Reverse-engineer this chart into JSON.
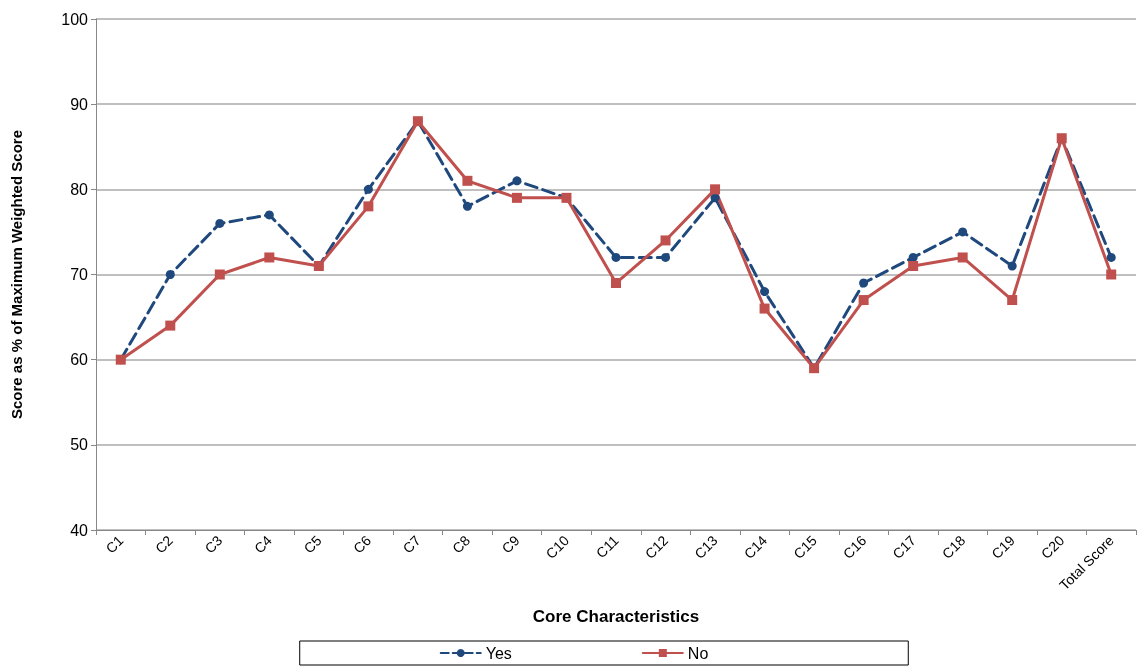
{
  "chart_data": {
    "type": "line",
    "xlabel": "Core Characteristics",
    "ylabel": "Score as % of Maximum Weighted Score",
    "categories": [
      "C1",
      "C2",
      "C3",
      "C4",
      "C5",
      "C6",
      "C7",
      "C8",
      "C9",
      "C10",
      "C11",
      "C12",
      "C13",
      "C14",
      "C15",
      "C16",
      "C17",
      "C18",
      "C19",
      "C20",
      "Total Score"
    ],
    "series": [
      {
        "name": "Yes",
        "color": "#1f497d",
        "marker": "circle",
        "line_style": "dashed",
        "values": [
          60,
          70,
          76,
          77,
          71,
          80,
          88,
          78,
          81,
          79,
          72,
          72,
          79,
          68,
          59,
          69,
          72,
          75,
          71,
          86,
          72
        ]
      },
      {
        "name": "No",
        "color": "#c0504d",
        "marker": "square",
        "line_style": "solid",
        "values": [
          60,
          64,
          70,
          72,
          71,
          78,
          88,
          81,
          79,
          79,
          69,
          74,
          80,
          66,
          59,
          67,
          71,
          72,
          67,
          86,
          70
        ]
      }
    ],
    "ylim": [
      40,
      100
    ],
    "yticks": [
      40,
      50,
      60,
      70,
      80,
      90,
      100
    ],
    "grid": "y",
    "legend": "bottom"
  }
}
